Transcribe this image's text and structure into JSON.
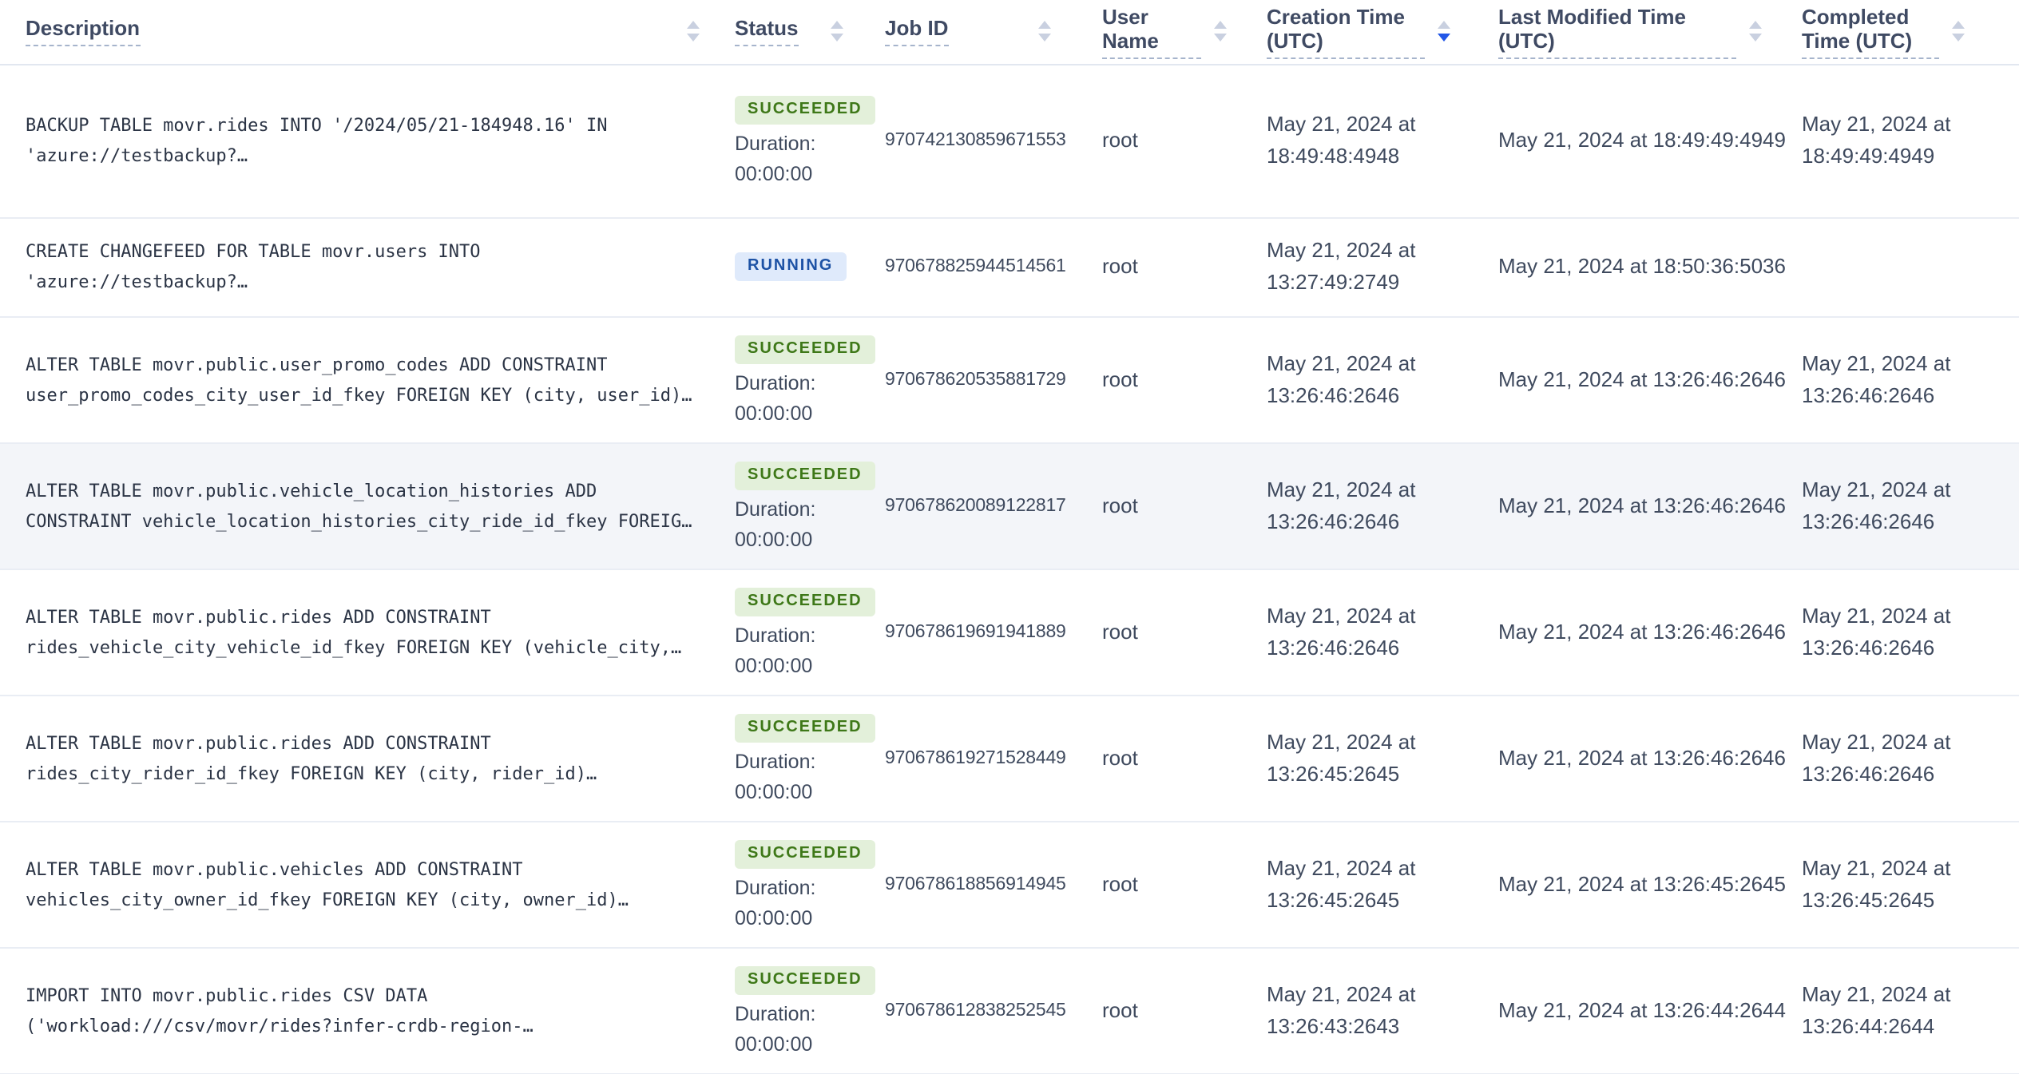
{
  "table": {
    "columns": [
      {
        "label": "Description"
      },
      {
        "label": "Status"
      },
      {
        "label": "Job ID"
      },
      {
        "label": "User Name"
      },
      {
        "label": "Creation Time (UTC)"
      },
      {
        "label": "Last Modified Time (UTC)"
      },
      {
        "label": "Completed Time (UTC)"
      }
    ],
    "sort": {
      "column": "Creation Time (UTC)",
      "direction": "desc"
    },
    "rows": [
      {
        "description": "BACKUP TABLE movr.rides INTO '/2024/05/21-184948.16' IN 'azure://testbackup?…",
        "status": "SUCCEEDED",
        "duration": "Duration: 00:00:00",
        "job_id": "970742130859671553",
        "user_name": "root",
        "created": "May 21, 2024 at 18:49:48:4948",
        "modified": "May 21, 2024 at 18:49:49:4949",
        "completed": "May 21, 2024 at 18:49:49:4949"
      },
      {
        "description": "CREATE CHANGEFEED FOR TABLE movr.users INTO 'azure://testbackup?…",
        "status": "RUNNING",
        "duration": "",
        "job_id": "970678825944514561",
        "user_name": "root",
        "created": "May 21, 2024 at 13:27:49:2749",
        "modified": "May 21, 2024 at 18:50:36:5036",
        "completed": ""
      },
      {
        "description": "ALTER TABLE movr.public.user_promo_codes ADD CONSTRAINT user_promo_codes_city_user_id_fkey FOREIGN KEY (city, user_id)…",
        "status": "SUCCEEDED",
        "duration": "Duration: 00:00:00",
        "job_id": "970678620535881729",
        "user_name": "root",
        "created": "May 21, 2024 at 13:26:46:2646",
        "modified": "May 21, 2024 at 13:26:46:2646",
        "completed": "May 21, 2024 at 13:26:46:2646"
      },
      {
        "description": "ALTER TABLE movr.public.vehicle_location_histories ADD CONSTRAINT vehicle_location_histories_city_ride_id_fkey FOREIG…",
        "status": "SUCCEEDED",
        "duration": "Duration: 00:00:00",
        "job_id": "970678620089122817",
        "user_name": "root",
        "created": "May 21, 2024 at 13:26:46:2646",
        "modified": "May 21, 2024 at 13:26:46:2646",
        "completed": "May 21, 2024 at 13:26:46:2646",
        "highlighted": true
      },
      {
        "description": "ALTER TABLE movr.public.rides ADD CONSTRAINT rides_vehicle_city_vehicle_id_fkey FOREIGN KEY (vehicle_city,…",
        "status": "SUCCEEDED",
        "duration": "Duration: 00:00:00",
        "job_id": "970678619691941889",
        "user_name": "root",
        "created": "May 21, 2024 at 13:26:46:2646",
        "modified": "May 21, 2024 at 13:26:46:2646",
        "completed": "May 21, 2024 at 13:26:46:2646"
      },
      {
        "description": "ALTER TABLE movr.public.rides ADD CONSTRAINT rides_city_rider_id_fkey FOREIGN KEY (city, rider_id)…",
        "status": "SUCCEEDED",
        "duration": "Duration: 00:00:00",
        "job_id": "970678619271528449",
        "user_name": "root",
        "created": "May 21, 2024 at 13:26:45:2645",
        "modified": "May 21, 2024 at 13:26:46:2646",
        "completed": "May 21, 2024 at 13:26:46:2646"
      },
      {
        "description": "ALTER TABLE movr.public.vehicles ADD CONSTRAINT vehicles_city_owner_id_fkey FOREIGN KEY (city, owner_id)…",
        "status": "SUCCEEDED",
        "duration": "Duration: 00:00:00",
        "job_id": "970678618856914945",
        "user_name": "root",
        "created": "May 21, 2024 at 13:26:45:2645",
        "modified": "May 21, 2024 at 13:26:45:2645",
        "completed": "May 21, 2024 at 13:26:45:2645"
      },
      {
        "description": "IMPORT INTO movr.public.rides CSV DATA ('workload:///csv/movr/rides?infer-crdb-region-…",
        "status": "SUCCEEDED",
        "duration": "Duration: 00:00:00",
        "job_id": "970678612838252545",
        "user_name": "root",
        "created": "May 21, 2024 at 13:26:43:2643",
        "modified": "May 21, 2024 at 13:26:44:2644",
        "completed": "May 21, 2024 at 13:26:44:2644"
      }
    ]
  },
  "colors": {
    "succeeded_badge_bg": "#e3f0da",
    "succeeded_badge_text": "#3e7818",
    "running_badge_bg": "#dfeafb",
    "running_badge_text": "#1d52a5",
    "active_sort_caret": "#2257e7",
    "highlighted_row_bg": "#f3f5f9"
  }
}
